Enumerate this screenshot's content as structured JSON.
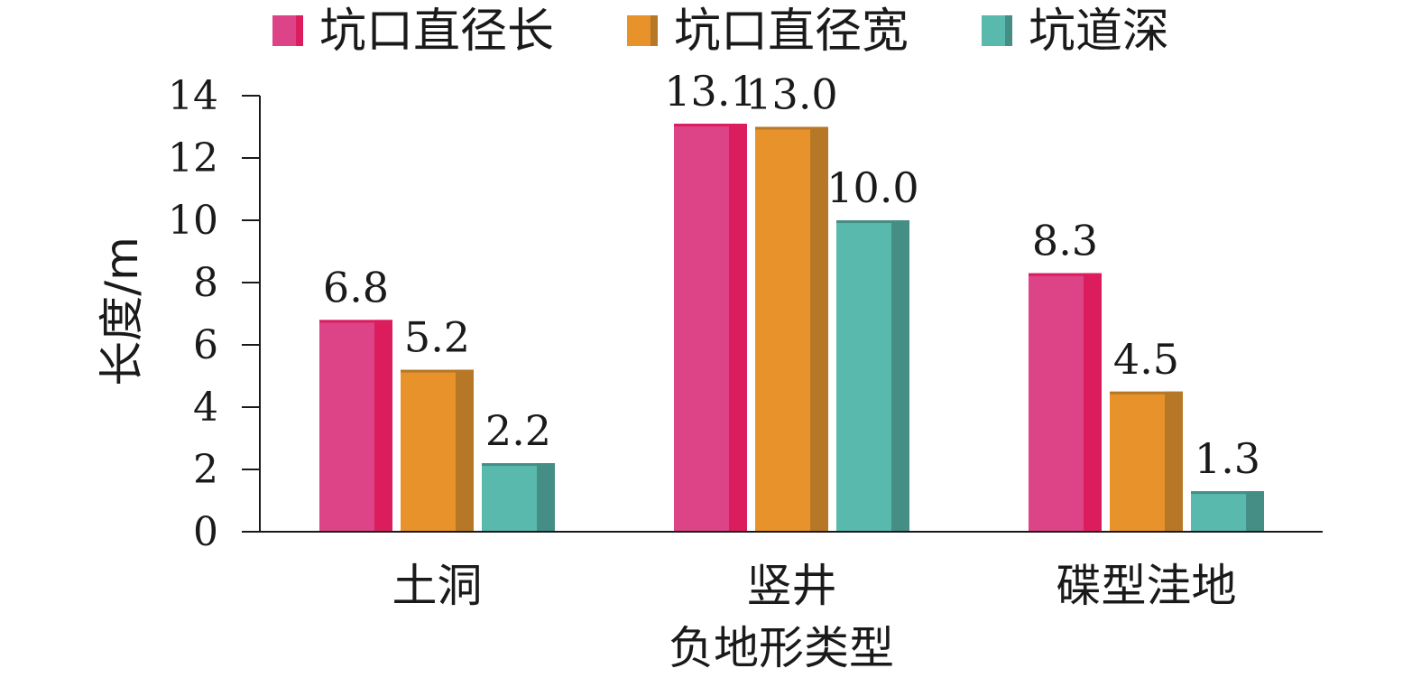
{
  "chart_data": {
    "type": "bar",
    "categories": [
      "土洞",
      "竖井",
      "碟型洼地"
    ],
    "series": [
      {
        "name": "坑口直径长",
        "values": [
          6.8,
          13.1,
          8.3
        ],
        "labels": [
          "6.8",
          "13.1",
          "8.3"
        ],
        "color": "#DC4487",
        "shade": "#DB1D5E"
      },
      {
        "name": "坑口直径宽",
        "values": [
          5.2,
          13.0,
          4.5
        ],
        "labels": [
          "5.2",
          "13.0",
          "4.5"
        ],
        "color": "#E8922B",
        "shade": "#B67826"
      },
      {
        "name": "坑道深",
        "values": [
          2.2,
          10.0,
          1.3
        ],
        "labels": [
          "2.2",
          "10.0",
          "1.3"
        ],
        "color": "#5AB9AD",
        "shade": "#458E86"
      }
    ],
    "xlabel": "负地形类型",
    "ylabel": "长度/m",
    "ylim": [
      0,
      14
    ],
    "yticks": [
      0,
      2,
      4,
      6,
      8,
      10,
      12,
      14
    ],
    "ytick_labels": [
      "0",
      "2",
      "4",
      "6",
      "8",
      "10",
      "12",
      "14"
    ],
    "grid": false,
    "legend_position": "top"
  }
}
